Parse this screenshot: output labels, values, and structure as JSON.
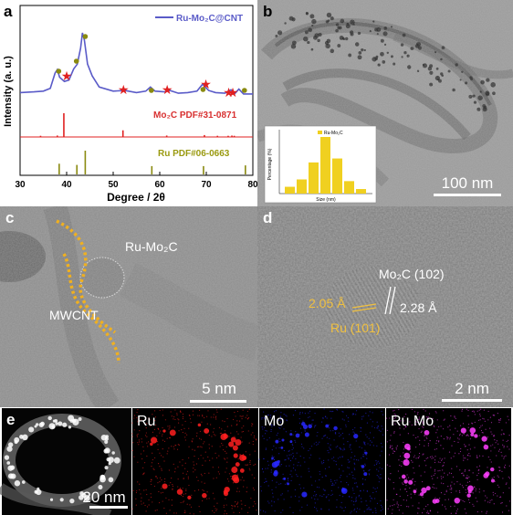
{
  "panels": {
    "a": {
      "letter": "a",
      "legend": "Ru-Mo₂C@CNT",
      "ref1": "Mo₂C  PDF#31-0871",
      "ref2": "Ru PDF#06-0663",
      "ylabel": "Intensity (a. u.)",
      "xlabel": "Degree / 2θ",
      "xticks": [
        "30",
        "40",
        "50",
        "60",
        "70",
        "80"
      ]
    },
    "b": {
      "letter": "b",
      "scale": "100 nm",
      "inset_legend": "Ru-Mo₂C",
      "inset_ylabel": "Percentage (%)",
      "inset_xlabel": "Size (nm)"
    },
    "c": {
      "letter": "c",
      "label1": "Ru-Mo₂C",
      "label2": "MWCNT",
      "scale": "5 nm"
    },
    "d": {
      "letter": "d",
      "mo_label": "Mo₂C (102)",
      "d1": "2.05 Å",
      "d2": "2.28 Å",
      "ru_label": "Ru (101)",
      "scale": "2 nm"
    },
    "e": {
      "letter": "e",
      "scale": "20 nm",
      "maps": [
        "Ru",
        "Mo",
        "Ru Mo"
      ]
    }
  },
  "chart_data": {
    "type": "line",
    "title": "",
    "xlabel": "Degree / 2θ",
    "ylabel": "Intensity (a. u.)",
    "xlim": [
      30,
      80
    ],
    "series": [
      {
        "name": "Ru-Mo₂C@CNT",
        "x": [
          30,
          33,
          35,
          36.5,
          37.5,
          38,
          38.5,
          39.5,
          40.5,
          41.5,
          42.3,
          43,
          43.4,
          43.8,
          44.5,
          45.5,
          47,
          50,
          52.5,
          55,
          57,
          58,
          59,
          61,
          62.2,
          64,
          66,
          68,
          69.2,
          70.5,
          72,
          74,
          75.3,
          76.2,
          77,
          78,
          80
        ],
        "y": [
          0.14,
          0.15,
          0.16,
          0.2,
          0.42,
          0.47,
          0.36,
          0.3,
          0.32,
          0.48,
          0.55,
          0.78,
          1.0,
          0.9,
          0.55,
          0.38,
          0.22,
          0.16,
          0.17,
          0.14,
          0.16,
          0.22,
          0.16,
          0.15,
          0.17,
          0.13,
          0.14,
          0.16,
          0.26,
          0.17,
          0.14,
          0.13,
          0.18,
          0.13,
          0.19,
          0.12,
          0.12
        ]
      },
      {
        "name": "Mo₂C  PDF#31-0871",
        "x": [
          34.4,
          38.0,
          39.4,
          52.1,
          61.5,
          69.6,
          72.4,
          74.7,
          75.5,
          76.0
        ],
        "y": [
          0.05,
          0.06,
          1.0,
          0.28,
          0.06,
          0.08,
          0.05,
          0.05,
          0.06,
          0.05
        ]
      },
      {
        "name": "Ru PDF#06-0663",
        "x": [
          38.4,
          42.2,
          44.0,
          58.3,
          69.4,
          78.4
        ],
        "y": [
          0.45,
          0.4,
          1.0,
          0.35,
          0.35,
          0.38
        ]
      }
    ],
    "markers": {
      "mo2c_stars": [
        40.0,
        52.2,
        61.6,
        69.9,
        74.8,
        75.7
      ],
      "ru_circles": [
        38.3,
        42.1,
        44.0,
        58.2,
        69.3,
        78.2
      ]
    }
  },
  "colors": {
    "xrd_line": "#5a5bc8",
    "mo2c": "#e02020",
    "ru": "#8a8a10",
    "mo2c_ref_text": "#d83030",
    "ru_ref_text": "#9a9a10",
    "annotation": "#f0b020",
    "ru_map": "#ff2020",
    "mo_map": "#2828ff",
    "overlay_map": "#ff40ff"
  }
}
